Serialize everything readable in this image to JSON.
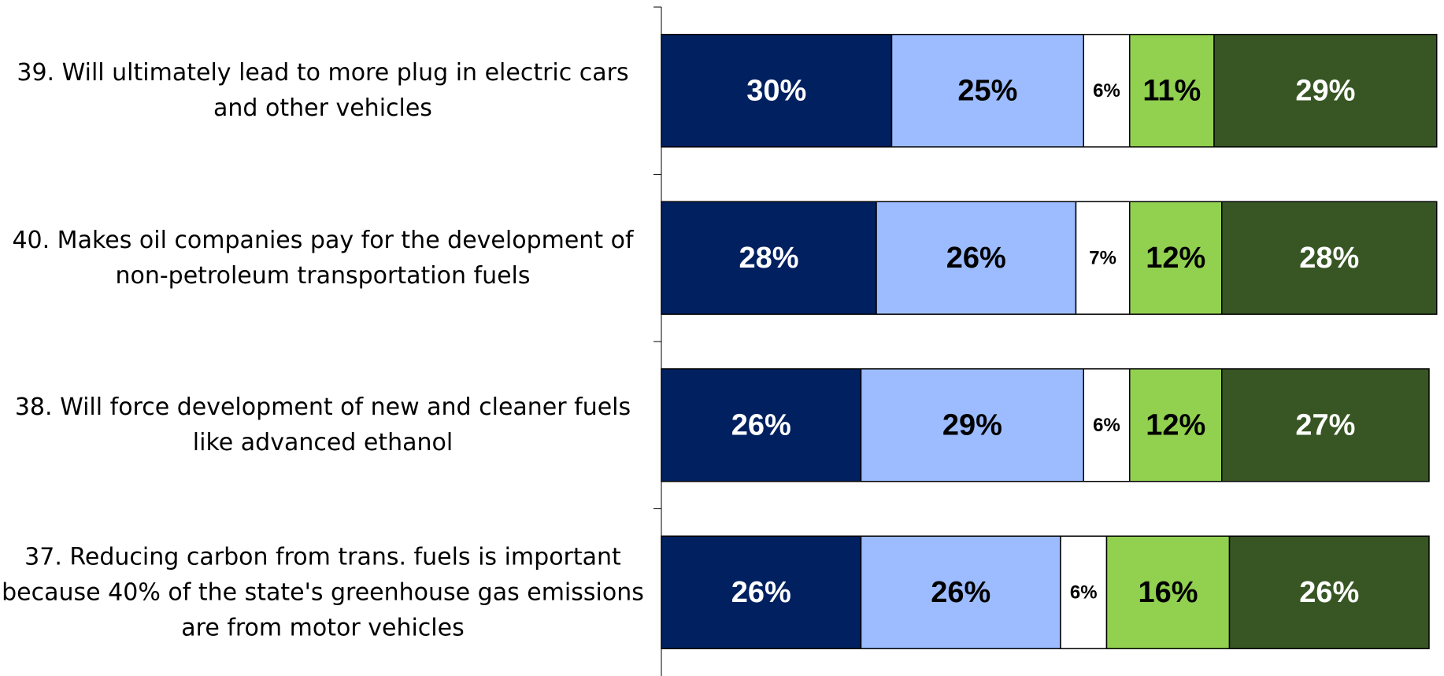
{
  "chart_data": {
    "type": "stacked_barh",
    "categories": [
      "39. Will ultimately lead to more plug in electric cars and other vehicles",
      "40. Makes oil companies pay for the development of non-petroleum transportation fuels",
      "38. Will force development of new and cleaner fuels like advanced ethanol",
      "37. Reducing carbon from trans. fuels is important because 40% of the state's greenhouse gas emissions are from motor vehicles"
    ],
    "series": [
      {
        "color": "#002060",
        "label_color": "#ffffff",
        "values": [
          30,
          28,
          26,
          26
        ],
        "value_labels": [
          "30%",
          "28%",
          "26%",
          "26%"
        ]
      },
      {
        "color": "#9dbcff",
        "label_color": "#000000",
        "values": [
          25,
          26,
          29,
          26
        ],
        "value_labels": [
          "25%",
          "26%",
          "29%",
          "26%"
        ]
      },
      {
        "color": "#ffffff",
        "label_color": "#000000",
        "values": [
          6,
          7,
          6,
          6
        ],
        "value_labels": [
          "6%",
          "7%",
          "6%",
          "6%"
        ]
      },
      {
        "color": "#92d050",
        "label_color": "#000000",
        "values": [
          11,
          12,
          12,
          16
        ],
        "value_labels": [
          "11%",
          "12%",
          "12%",
          "16%"
        ]
      },
      {
        "color": "#375623",
        "label_color": "#ffffff",
        "values": [
          29,
          28,
          27,
          26
        ],
        "value_labels": [
          "29%",
          "28%",
          "27%",
          "26%"
        ]
      }
    ],
    "xlim": [
      0,
      100
    ]
  }
}
